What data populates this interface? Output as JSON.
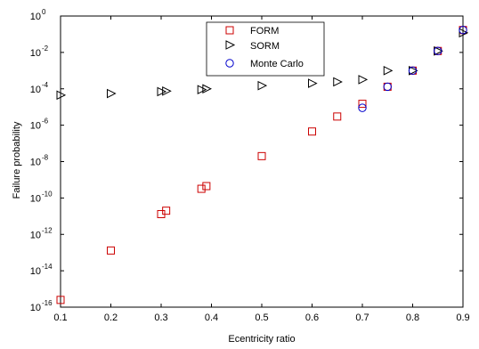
{
  "colors": {
    "form": "#cc0000",
    "sorm": "#000000",
    "monte_carlo": "#0000cc",
    "axis": "#000000",
    "background": "#ffffff"
  },
  "chart_data": {
    "type": "scatter",
    "title": "",
    "xlabel": "Ecentricity ratio",
    "ylabel": "Failure probability",
    "xlim": [
      0.1,
      0.9
    ],
    "ylim": [
      1e-16,
      1
    ],
    "yscale": "log",
    "grid": false,
    "legend_position": "top-center",
    "x_ticks": [
      "0.1",
      "0.2",
      "0.3",
      "0.4",
      "0.5",
      "0.6",
      "0.7",
      "0.8",
      "0.9"
    ],
    "y_ticks": [
      {
        "base": "10",
        "exp": "0"
      },
      {
        "base": "10",
        "exp": "-2"
      },
      {
        "base": "10",
        "exp": "-4"
      },
      {
        "base": "10",
        "exp": "-6"
      },
      {
        "base": "10",
        "exp": "-8"
      },
      {
        "base": "10",
        "exp": "-10"
      },
      {
        "base": "10",
        "exp": "-12"
      },
      {
        "base": "10",
        "exp": "-14"
      },
      {
        "base": "10",
        "exp": "-16"
      }
    ],
    "series": [
      {
        "name": "FORM",
        "marker": "square",
        "color": "#cc0000",
        "x": [
          0.1,
          0.2,
          0.3,
          0.31,
          0.38,
          0.39,
          0.5,
          0.6,
          0.65,
          0.7,
          0.75,
          0.8,
          0.85,
          0.9
        ],
        "y": [
          2.5e-16,
          1.3e-13,
          1.3e-11,
          2e-11,
          3.2e-10,
          4.5e-10,
          2e-08,
          4.5e-07,
          3e-06,
          1.5e-05,
          0.00013,
          0.001,
          0.012,
          0.17
        ]
      },
      {
        "name": "SORM",
        "marker": "triangle-right",
        "color": "#000000",
        "x": [
          0.1,
          0.2,
          0.3,
          0.31,
          0.38,
          0.39,
          0.5,
          0.6,
          0.65,
          0.7,
          0.75,
          0.8,
          0.85,
          0.9
        ],
        "y": [
          4.5e-05,
          5.5e-05,
          7e-05,
          7.5e-05,
          9e-05,
          0.0001,
          0.00015,
          0.0002,
          0.00024,
          0.00032,
          0.001,
          0.001,
          0.012,
          0.12
        ]
      },
      {
        "name": "Monte Carlo",
        "marker": "circle",
        "color": "#0000cc",
        "x": [
          0.7,
          0.75,
          0.8,
          0.85,
          0.9
        ],
        "y": [
          9e-06,
          0.00013,
          0.001,
          0.012,
          0.17
        ]
      }
    ]
  }
}
